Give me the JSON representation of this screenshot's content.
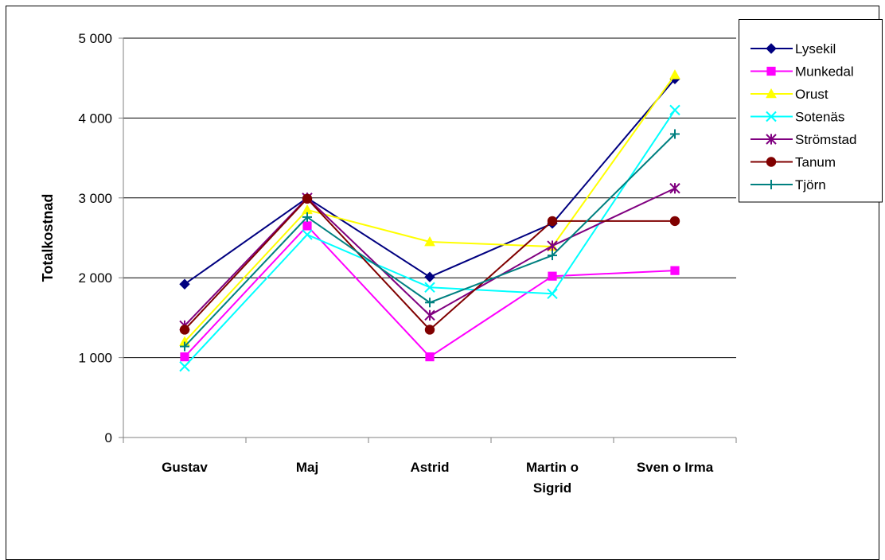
{
  "chart_data": {
    "type": "line",
    "title": "",
    "xlabel": "",
    "ylabel": "Totalkostnad",
    "categories": [
      [
        "Gustav"
      ],
      [
        "Maj"
      ],
      [
        "Astrid"
      ],
      [
        "Martin o",
        "Sigrid"
      ],
      [
        "Sven o Irma"
      ]
    ],
    "ylim": [
      0,
      5000
    ],
    "yticks": [
      0,
      1000,
      2000,
      3000,
      4000,
      5000
    ],
    "ytick_labels": [
      "0",
      "1 000",
      "2 000",
      "3 000",
      "4 000",
      "5 000"
    ],
    "grid": true,
    "legend_position": "top-right",
    "series": [
      {
        "name": "Lysekil",
        "color": "#000080",
        "marker": "diamond",
        "values": [
          1920,
          3000,
          2010,
          2680,
          4490
        ]
      },
      {
        "name": "Munkedal",
        "color": "#FF00FF",
        "marker": "square",
        "values": [
          1010,
          2650,
          1010,
          2020,
          2090
        ]
      },
      {
        "name": "Orust",
        "color": "#FFFF00",
        "marker": "triangle",
        "values": [
          1200,
          2850,
          2450,
          2390,
          4540
        ]
      },
      {
        "name": "Sotenäs",
        "color": "#00FFFF",
        "marker": "x",
        "values": [
          890,
          2540,
          1880,
          1800,
          4100
        ]
      },
      {
        "name": "Strömstad",
        "color": "#800080",
        "marker": "asterisk",
        "values": [
          1400,
          3000,
          1530,
          2400,
          3120
        ]
      },
      {
        "name": "Tanum",
        "color": "#800000",
        "marker": "circle",
        "values": [
          1350,
          2990,
          1350,
          2710,
          2710
        ]
      },
      {
        "name": "Tjörn",
        "color": "#008080",
        "marker": "plus",
        "values": [
          1140,
          2760,
          1690,
          2280,
          3800
        ]
      }
    ]
  }
}
